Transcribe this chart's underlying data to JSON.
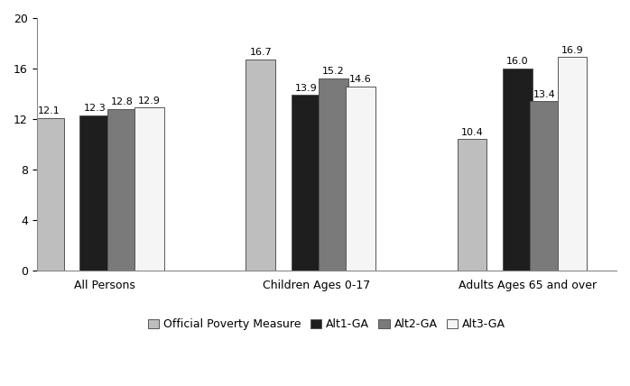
{
  "categories": [
    "All Persons",
    "Children Ages 0-17",
    "Adults Ages 65 and over"
  ],
  "series": {
    "Official Poverty Measure": [
      12.1,
      16.7,
      10.4
    ],
    "Alt1-GA": [
      12.3,
      13.9,
      16.0
    ],
    "Alt2-GA": [
      12.8,
      15.2,
      13.4
    ],
    "Alt3-GA": [
      12.9,
      14.6,
      16.9
    ]
  },
  "colors": {
    "Official Poverty Measure": "#bebebe",
    "Alt1-GA": "#1e1e1e",
    "Alt2-GA": "#7a7a7a",
    "Alt3-GA": "#f5f5f5"
  },
  "bar_edge_color": "#555555",
  "ylim": [
    0,
    20
  ],
  "yticks": [
    0,
    4,
    8,
    12,
    16,
    20
  ],
  "bar_width": 0.13,
  "group_positions": [
    0.28,
    1.15,
    2.02
  ],
  "label_fontsize": 9,
  "tick_fontsize": 9,
  "legend_fontsize": 9,
  "value_fontsize": 8,
  "figsize": [
    6.98,
    4.28
  ],
  "dpi": 100,
  "background_color": "#ffffff"
}
